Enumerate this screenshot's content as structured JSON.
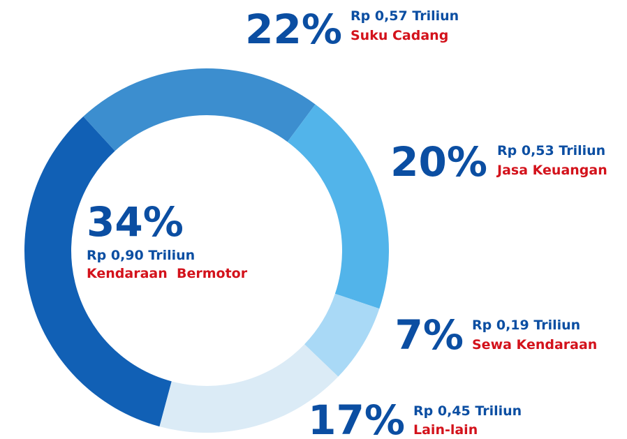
{
  "chart_data": {
    "type": "pie",
    "donut": true,
    "categories": [
      "Kendaraan  Bermotor",
      "Suku Cadang",
      "Jasa Keuangan",
      "Sewa Kendaraan",
      "Lain-lain"
    ],
    "values": [
      34,
      22,
      20,
      7,
      17
    ],
    "value_labels": [
      "34%",
      "22%",
      "20%",
      "7%",
      "17%"
    ],
    "amount_labels": [
      "Rp 0,90 Triliun",
      "Rp 0,57 Triliun",
      "Rp 0,53 Triliun",
      "Rp 0,19 Triliun",
      "Rp 0,45 Triliun"
    ],
    "colors": [
      "#1160b5",
      "#3c8ecf",
      "#52b4ea",
      "#a9d9f6",
      "#dbebf6"
    ]
  }
}
